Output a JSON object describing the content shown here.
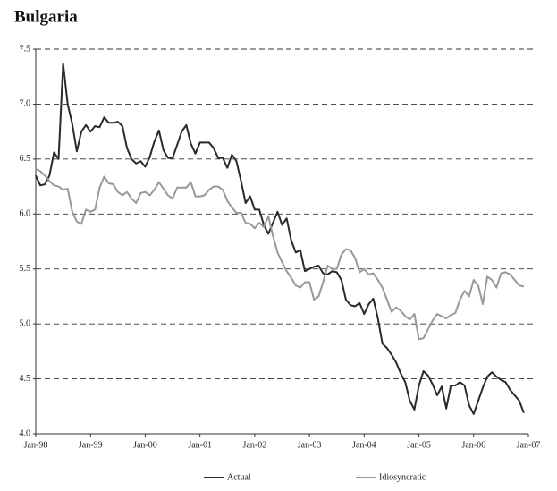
{
  "chart_data": {
    "type": "line",
    "title": "Bulgaria",
    "categories": [
      "Jan-98",
      null,
      null,
      null,
      null,
      null,
      null,
      null,
      null,
      null,
      null,
      null,
      "Jan-99",
      null,
      null,
      null,
      null,
      null,
      null,
      null,
      null,
      null,
      null,
      null,
      "Jan-00",
      null,
      null,
      null,
      null,
      null,
      null,
      null,
      null,
      null,
      null,
      null,
      "Jan-01",
      null,
      null,
      null,
      null,
      null,
      null,
      null,
      null,
      null,
      null,
      null,
      "Jan-02",
      null,
      null,
      null,
      null,
      null,
      null,
      null,
      null,
      null,
      null,
      null,
      "Jan-03",
      null,
      null,
      null,
      null,
      null,
      null,
      null,
      null,
      null,
      null,
      null,
      "Jan-04",
      null,
      null,
      null,
      null,
      null,
      null,
      null,
      null,
      null,
      null,
      null,
      "Jan-05",
      null,
      null,
      null,
      null,
      null,
      null,
      null,
      null,
      null,
      null,
      null,
      "Jan-06",
      null,
      null,
      null,
      null,
      null,
      null,
      null,
      null,
      null,
      null,
      null,
      "Jan-07"
    ],
    "series": [
      {
        "name": "Actual",
        "color": "#2a2a2a",
        "values": [
          6.35,
          6.26,
          6.27,
          6.35,
          6.56,
          6.5,
          7.37,
          7.0,
          6.82,
          6.57,
          6.75,
          6.81,
          6.75,
          6.8,
          6.79,
          6.88,
          6.83,
          6.83,
          6.84,
          6.8,
          6.6,
          6.5,
          6.46,
          6.48,
          6.43,
          6.52,
          6.66,
          6.76,
          6.58,
          6.51,
          6.51,
          6.63,
          6.75,
          6.81,
          6.64,
          6.55,
          6.65,
          6.65,
          6.65,
          6.6,
          6.51,
          6.51,
          6.42,
          6.54,
          6.48,
          6.3,
          6.1,
          6.16,
          6.04,
          6.04,
          5.9,
          5.82,
          5.92,
          6.02,
          5.9,
          5.96,
          5.76,
          5.65,
          5.67,
          5.48,
          5.5,
          5.52,
          5.53,
          5.46,
          5.45,
          5.48,
          5.47,
          5.4,
          5.22,
          5.17,
          5.16,
          5.19,
          5.09,
          5.18,
          5.23,
          5.05,
          4.82,
          4.78,
          4.72,
          4.65,
          4.55,
          4.47,
          4.3,
          4.22,
          4.44,
          4.57,
          4.53,
          4.45,
          4.35,
          4.43,
          4.23,
          4.44,
          4.44,
          4.47,
          4.44,
          4.26,
          4.18,
          4.3,
          4.42,
          4.52,
          4.56,
          4.52,
          4.49,
          4.47,
          4.4,
          4.35,
          4.3,
          4.19,
          null
        ]
      },
      {
        "name": "Idiosyncratic",
        "color": "#999999",
        "values": [
          6.41,
          6.39,
          6.35,
          6.3,
          6.26,
          6.25,
          6.22,
          6.23,
          6.02,
          5.93,
          5.91,
          6.04,
          6.02,
          6.04,
          6.24,
          6.34,
          6.28,
          6.27,
          6.2,
          6.17,
          6.2,
          6.14,
          6.1,
          6.19,
          6.2,
          6.17,
          6.22,
          6.29,
          6.23,
          6.17,
          6.14,
          6.24,
          6.24,
          6.24,
          6.29,
          6.16,
          6.16,
          6.17,
          6.22,
          6.25,
          6.25,
          6.22,
          6.12,
          6.06,
          6.01,
          6.01,
          5.92,
          5.91,
          5.87,
          5.92,
          5.88,
          5.98,
          5.8,
          5.65,
          5.56,
          5.48,
          5.42,
          5.35,
          5.33,
          5.38,
          5.38,
          5.22,
          5.25,
          5.38,
          5.53,
          5.5,
          5.5,
          5.63,
          5.68,
          5.67,
          5.6,
          5.47,
          5.5,
          5.45,
          5.46,
          5.4,
          5.33,
          5.22,
          5.11,
          5.15,
          5.12,
          5.07,
          5.04,
          5.09,
          4.86,
          4.87,
          4.95,
          5.03,
          5.09,
          5.07,
          5.05,
          5.08,
          5.1,
          5.22,
          5.3,
          5.25,
          5.4,
          5.35,
          5.18,
          5.43,
          5.4,
          5.33,
          5.46,
          5.47,
          5.45,
          5.4,
          5.35,
          5.34,
          null
        ]
      }
    ],
    "ylim": [
      4,
      7.5
    ],
    "yticks": [
      {
        "value": 4,
        "label": "4.0"
      },
      4.5,
      {
        "value": 5,
        "label": "5.0"
      },
      5.5,
      {
        "value": 6,
        "label": "6.0"
      },
      6.5,
      {
        "value": 7,
        "label": "7.0"
      },
      7.5
    ],
    "grid": true
  }
}
